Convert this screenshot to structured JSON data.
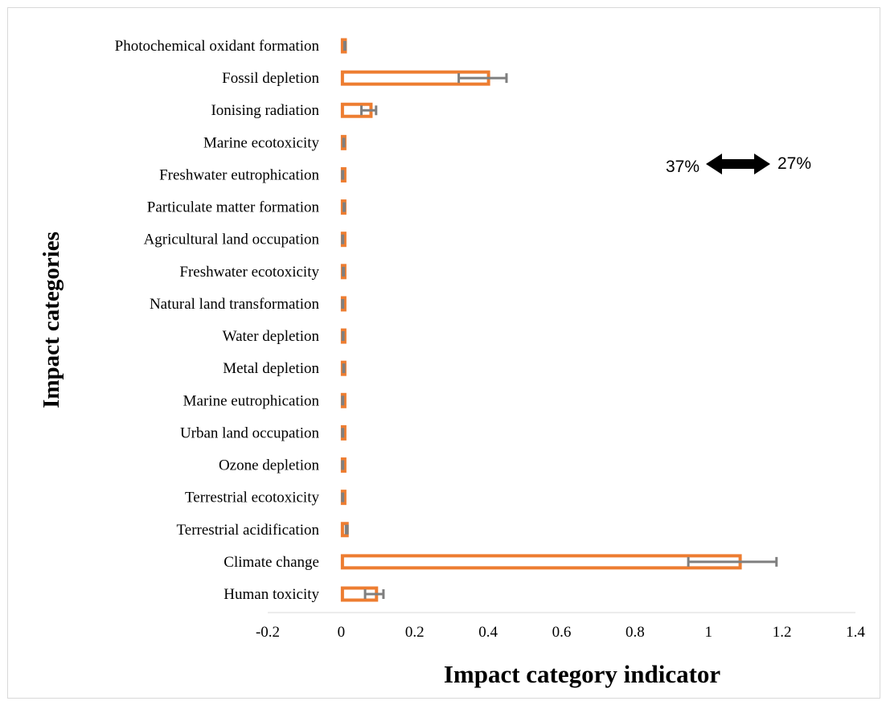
{
  "chart_data": {
    "type": "bar",
    "orientation": "horizontal",
    "xlabel": "Impact category indicator",
    "ylabel": "Impact categories",
    "xlim": [
      -0.2,
      1.4
    ],
    "xticks": [
      "-0.2",
      "0",
      "0.2",
      "0.4",
      "0.6",
      "0.8",
      "1",
      "1.2",
      "1.4"
    ],
    "grid": false,
    "categories": [
      "Human toxicity",
      "Climate change",
      "Terrestrial acidification",
      "Terrestrial ecotoxicity",
      "Ozone depletion",
      "Urban land occupation",
      "Marine eutrophication",
      "Metal depletion",
      "Water depletion",
      "Natural land transformation",
      "Freshwater ecotoxicity",
      "Agricultural land occupation",
      "Particulate matter formation",
      "Freshwater eutrophication",
      "Marine ecotoxicity",
      "Ionising radiation",
      "Fossil depletion",
      "Photochemical oxidant formation"
    ],
    "values": [
      0.095,
      1.085,
      0.015,
      0.004,
      0.004,
      0.004,
      0.004,
      0.007,
      0.005,
      0.004,
      0.006,
      0.004,
      0.008,
      0.004,
      0.007,
      0.08,
      0.4,
      0.01
    ],
    "error_low": [
      0.065,
      0.945,
      0.013,
      0.003,
      0.003,
      0.003,
      0.003,
      0.006,
      0.004,
      0.003,
      0.005,
      0.003,
      0.007,
      0.003,
      0.006,
      0.055,
      0.32,
      0.009
    ],
    "error_high": [
      0.115,
      1.185,
      0.017,
      0.005,
      0.005,
      0.005,
      0.005,
      0.008,
      0.006,
      0.005,
      0.007,
      0.005,
      0.009,
      0.005,
      0.008,
      0.095,
      0.45,
      0.011
    ],
    "colors": {
      "bar": "#ED7D31",
      "error": "#7F7F7F",
      "axis": "#D9D9D9"
    },
    "annotation": {
      "left_text": "37%",
      "right_text": "27%",
      "shape": "double-arrow"
    }
  }
}
